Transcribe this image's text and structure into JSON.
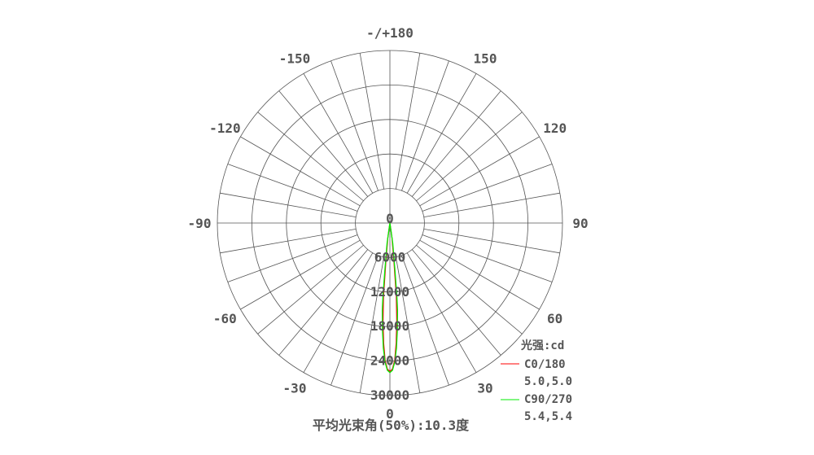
{
  "chart_data": {
    "type": "polar",
    "title": "平均光束角(50%):10.3度",
    "unit_label": "光强:cd",
    "radial_ticks": [
      "0",
      "6000",
      "12000",
      "18000",
      "24000",
      "30000"
    ],
    "radial_range": [
      0,
      30000
    ],
    "angle_labels": [
      {
        "angle": 180,
        "text": "-/+180"
      },
      {
        "angle": 150,
        "text": "150"
      },
      {
        "angle": 120,
        "text": "120"
      },
      {
        "angle": 90,
        "text": "90"
      },
      {
        "angle": 60,
        "text": "60"
      },
      {
        "angle": 30,
        "text": "30"
      },
      {
        "angle": 0,
        "text": "0"
      },
      {
        "angle": -30,
        "text": "-30"
      },
      {
        "angle": -60,
        "text": "-60"
      },
      {
        "angle": -90,
        "text": "-90"
      },
      {
        "angle": -120,
        "text": "-120"
      },
      {
        "angle": -150,
        "text": "-150"
      }
    ],
    "grid": true,
    "legend_position": "bottom-right",
    "series": [
      {
        "name": "C0/180",
        "half_angles": "5.0,5.0",
        "color": "#ff0000",
        "peak": 25800,
        "angles": [
          -8,
          -6,
          -5,
          -4,
          -3,
          -2,
          -1,
          0,
          1,
          2,
          3,
          4,
          5,
          6,
          8
        ],
        "values": [
          2700,
          6800,
          12900,
          17200,
          20900,
          23900,
          25400,
          25800,
          25400,
          23900,
          20900,
          17200,
          12900,
          6800,
          2700
        ]
      },
      {
        "name": "C90/270",
        "half_angles": "5.4,5.4",
        "color": "#00ee00",
        "peak": 26000,
        "angles": [
          -8,
          -6,
          -5.4,
          -5,
          -4,
          -3,
          -2,
          -1,
          0,
          1,
          2,
          3,
          4,
          5,
          5.4,
          6,
          8
        ],
        "values": [
          3600,
          8800,
          13000,
          15200,
          18600,
          21800,
          24200,
          25600,
          26000,
          25600,
          24200,
          21800,
          18600,
          15200,
          13000,
          8800,
          3600
        ]
      }
    ]
  }
}
